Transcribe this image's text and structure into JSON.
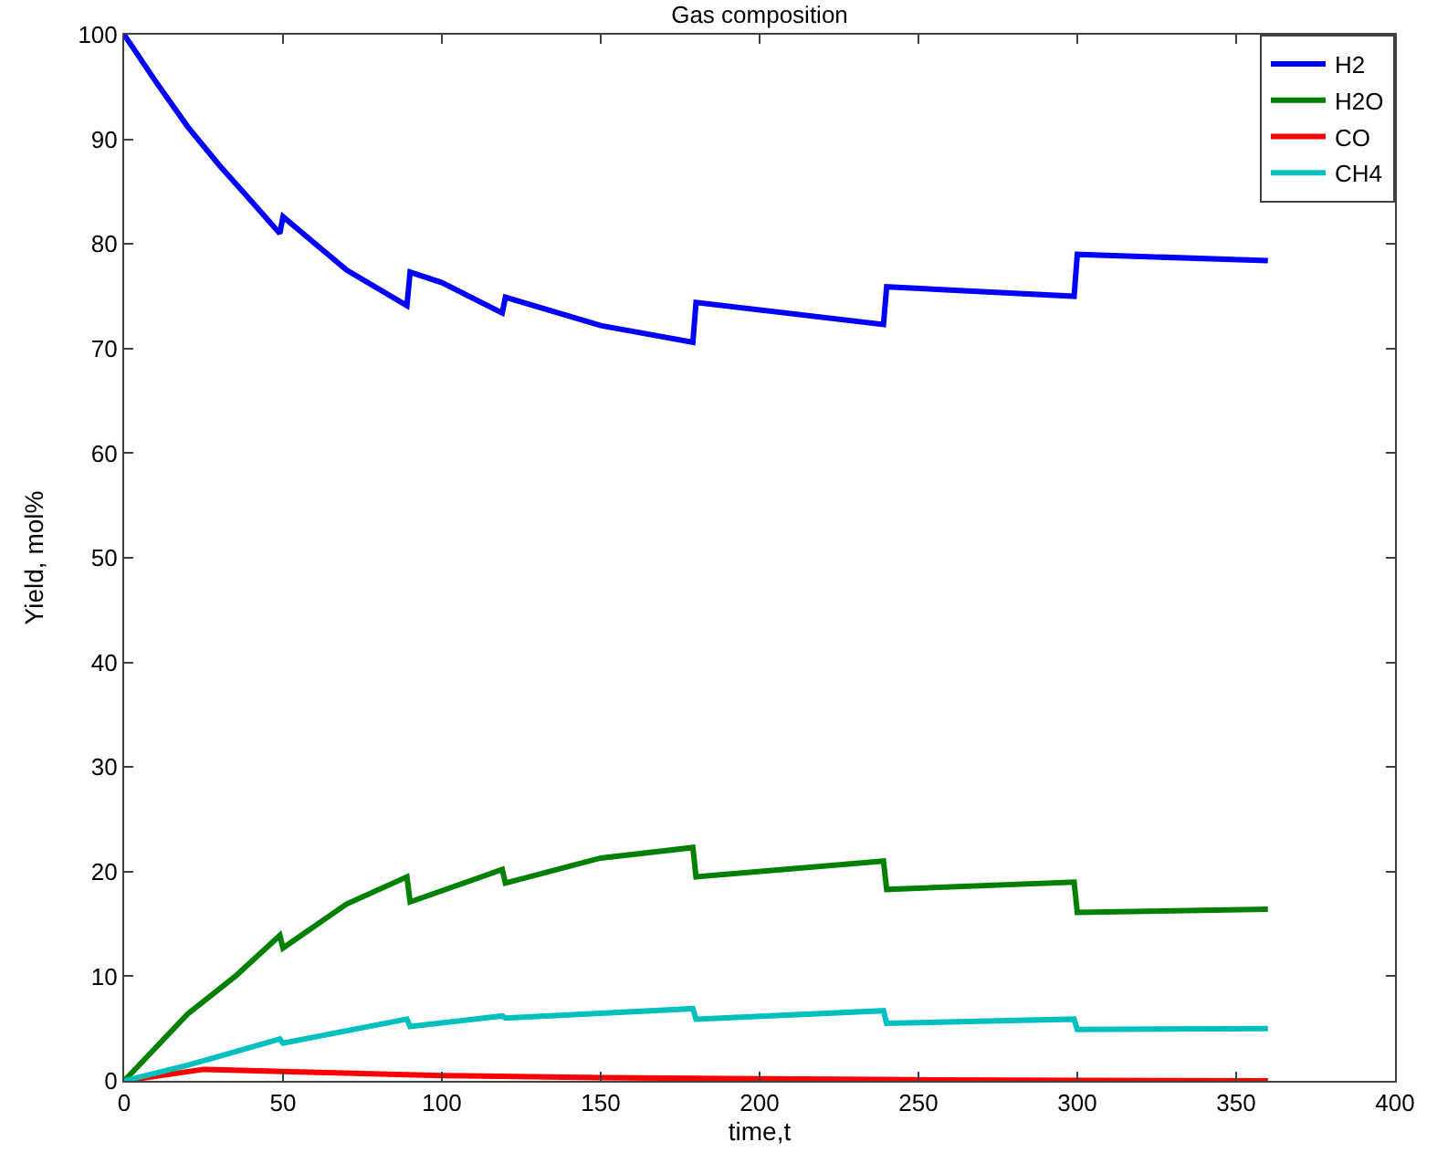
{
  "chart_data": {
    "type": "line",
    "title": "Gas composition",
    "xlabel": "time,t",
    "ylabel": "Yield, mol%",
    "xlim": [
      0,
      400
    ],
    "ylim": [
      0,
      100
    ],
    "xticks": [
      0,
      50,
      100,
      150,
      200,
      250,
      300,
      350,
      400
    ],
    "yticks": [
      0,
      10,
      20,
      30,
      40,
      50,
      60,
      70,
      80,
      90,
      100
    ],
    "legend": "top right",
    "marker": "none",
    "line_style": "solid",
    "series": [
      {
        "name": "H2",
        "color": "#0000ff",
        "x": [
          0,
          10,
          20,
          30,
          40,
          49,
          50,
          70,
          89,
          90,
          100,
          119,
          120,
          150,
          179,
          180,
          239,
          240,
          299,
          300,
          360
        ],
        "values": [
          100,
          95.5,
          91.2,
          87.5,
          84.1,
          81,
          82.6,
          77.5,
          74.1,
          77.3,
          76.3,
          73.4,
          74.9,
          72.2,
          70.6,
          74.4,
          72.3,
          75.9,
          75,
          79,
          78.4
        ]
      },
      {
        "name": "H2O",
        "color": "#008000",
        "x": [
          0,
          20,
          35,
          49,
          50,
          70,
          89,
          90,
          119,
          120,
          150,
          179,
          180,
          239,
          240,
          299,
          300,
          360
        ],
        "values": [
          0,
          6.4,
          10,
          13.9,
          12.7,
          16.9,
          19.5,
          17.1,
          20.2,
          18.9,
          21.3,
          22.3,
          19.5,
          21,
          18.3,
          19,
          16.1,
          16.4
        ]
      },
      {
        "name": "CO",
        "color": "#ff0000",
        "x": [
          0,
          25,
          50,
          100,
          150,
          200,
          250,
          360
        ],
        "values": [
          0,
          1.1,
          0.9,
          0.5,
          0.3,
          0.2,
          0.1,
          0
        ]
      },
      {
        "name": "CH4",
        "color": "#00bfbf",
        "x": [
          0,
          20,
          49,
          50,
          89,
          90,
          119,
          120,
          179,
          180,
          239,
          240,
          299,
          300,
          360
        ],
        "values": [
          0,
          1.5,
          4,
          3.6,
          5.9,
          5.2,
          6.2,
          6,
          6.9,
          5.9,
          6.7,
          5.5,
          5.9,
          4.9,
          5
        ]
      }
    ]
  }
}
